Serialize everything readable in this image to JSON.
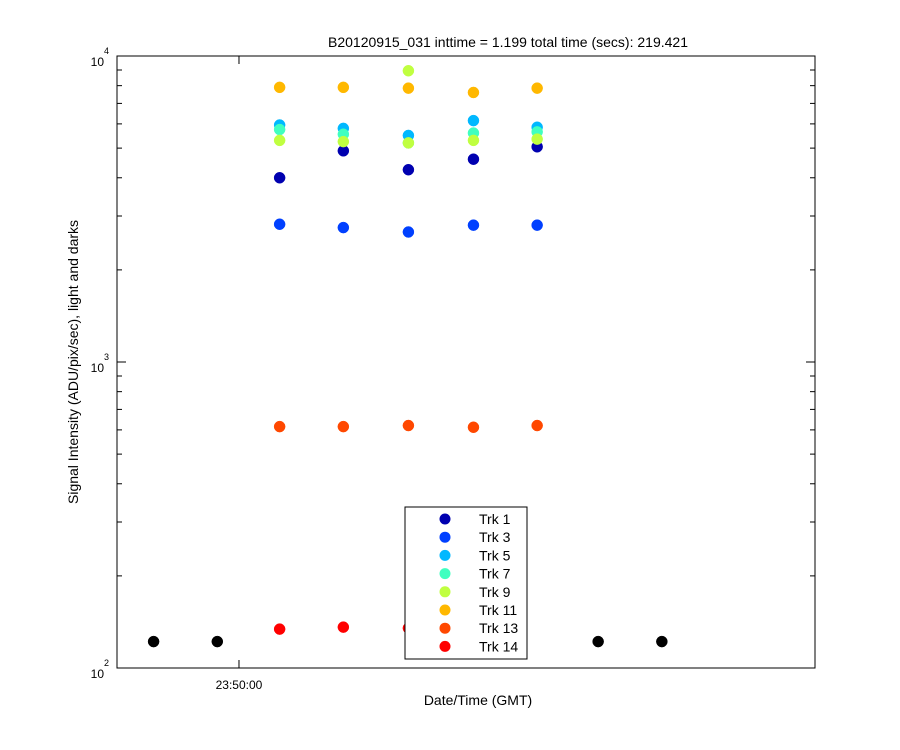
{
  "chart_data": {
    "type": "scatter",
    "title": "B20120915_031 inttime = 1.199 total time (secs): 219.421",
    "xlabel": "Date/Time (GMT)",
    "ylabel": "Signal Intensity (ADU/pix/sec), light and darks",
    "y_scale": "log",
    "ylim": [
      100,
      10000
    ],
    "y_ticks": [
      {
        "value": 100,
        "base": "10",
        "exp": "2"
      },
      {
        "value": 1000,
        "base": "10",
        "exp": "3"
      },
      {
        "value": 10000,
        "base": "10",
        "exp": "4"
      }
    ],
    "xlim": [
      -0.9,
      4.25
    ],
    "x_ticks": [
      {
        "value": 0,
        "label": "23:50:00"
      }
    ],
    "grid": false,
    "legend_position": "bottom-center",
    "series": [
      {
        "name": "Trk 1",
        "color": "#0000b0",
        "x": [
          0.3,
          0.77,
          1.25,
          1.73,
          2.2
        ],
        "values": [
          4000,
          4900,
          4250,
          4600,
          5050
        ]
      },
      {
        "name": "Trk 3",
        "color": "#0040ff",
        "x": [
          0.3,
          0.77,
          1.25,
          1.73,
          2.2
        ],
        "values": [
          2820,
          2750,
          2660,
          2800,
          2800
        ]
      },
      {
        "name": "Trk 5",
        "color": "#00b8ff",
        "x": [
          0.3,
          0.77,
          1.25,
          1.73,
          2.2
        ],
        "values": [
          5950,
          5800,
          5500,
          6150,
          5850
        ]
      },
      {
        "name": "Trk 7",
        "color": "#40ffc0",
        "x": [
          0.3,
          0.77,
          1.25,
          1.73,
          2.2
        ],
        "values": [
          5750,
          5550,
          5200,
          5600,
          5650
        ]
      },
      {
        "name": "Trk 9",
        "color": "#c0ff40",
        "x": [
          0.3,
          0.77,
          1.25,
          1.73,
          2.2
        ],
        "values": [
          5300,
          5250,
          5200,
          5300,
          5350
        ]
      },
      {
        "name": "Trk 11",
        "color": "#ffb800",
        "x": [
          0.3,
          0.77,
          1.25,
          1.73,
          2.2
        ],
        "values": [
          7900,
          7900,
          7850,
          7600,
          7850
        ]
      },
      {
        "name": "Trk 13",
        "color": "#ff4800",
        "x": [
          0.3,
          0.77,
          1.25,
          1.73,
          2.2
        ],
        "values": [
          615,
          615,
          620,
          612,
          620
        ]
      },
      {
        "name": "Trk 14",
        "color": "#ff0000",
        "x": [
          0.3,
          0.77,
          1.25
        ],
        "values": [
          134,
          136,
          135
        ]
      }
    ],
    "extra_series": [
      {
        "name": "Trk 9 (extra point)",
        "color": "#c0ff40",
        "x": [
          1.25
        ],
        "values": [
          8950
        ]
      },
      {
        "name": "darks",
        "color": "#000000",
        "x": [
          -0.63,
          -0.16,
          2.65,
          3.12
        ],
        "values": [
          122,
          122,
          122,
          122
        ]
      }
    ]
  }
}
